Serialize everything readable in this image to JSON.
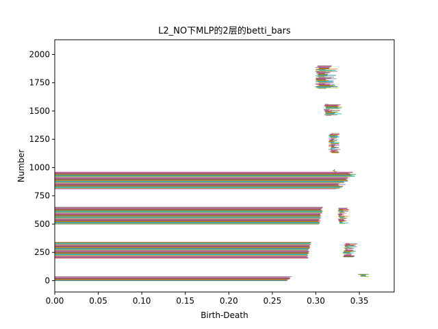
{
  "chart_data": {
    "type": "bar",
    "orientation": "horizontal",
    "title": "L2_NO下MLP的2层的betti_bars",
    "xlabel": "Birth-Death",
    "ylabel": "Number",
    "xlim": [
      0.0,
      0.39
    ],
    "ylim": [
      -100,
      2130
    ],
    "xticks": [
      0.0,
      0.05,
      0.1,
      0.15,
      0.2,
      0.25,
      0.3,
      0.35
    ],
    "xtick_labels": [
      "0.00",
      "0.05",
      "0.10",
      "0.15",
      "0.20",
      "0.25",
      "0.30",
      "0.35"
    ],
    "yticks": [
      0,
      250,
      500,
      750,
      1000,
      1250,
      1500,
      1750,
      2000
    ],
    "ytick_labels": [
      "0",
      "250",
      "500",
      "750",
      "1000",
      "1250",
      "1500",
      "1750",
      "2000"
    ],
    "grid": false,
    "legend": "none",
    "palette": [
      "#1f77b4",
      "#ff7f0e",
      "#2ca02c",
      "#d62728",
      "#9467bd",
      "#8c564b",
      "#e377c2",
      "#7f7f7f",
      "#bcbd22",
      "#17becf"
    ],
    "groups": [
      {
        "index_range": [
          0,
          35
        ],
        "kind": "long",
        "start": 0.0,
        "end_max": 0.273,
        "end_min": 0.265
      },
      {
        "index_range": [
          36,
          58
        ],
        "kind": "short",
        "start_min": 0.347,
        "start_max": 0.353,
        "end_min": 0.356,
        "end_max": 0.362
      },
      {
        "index_range": [
          200,
          340
        ],
        "kind": "long",
        "start": 0.0,
        "end_max": 0.295,
        "end_min": 0.289
      },
      {
        "index_range": [
          210,
          330
        ],
        "kind": "short",
        "start_min": 0.331,
        "start_max": 0.335,
        "end_min": 0.336,
        "end_max": 0.348
      },
      {
        "index_range": [
          500,
          650
        ],
        "kind": "long",
        "start": 0.0,
        "end_max": 0.309,
        "end_min": 0.302
      },
      {
        "index_range": [
          505,
          640
        ],
        "kind": "short",
        "start_min": 0.325,
        "start_max": 0.328,
        "end_min": 0.329,
        "end_max": 0.338
      },
      {
        "index_range": [
          810,
          960
        ],
        "kind": "long",
        "start": 0.0,
        "end_max": 0.35,
        "end_min": 0.32
      },
      {
        "index_range": [
          965,
          980
        ],
        "kind": "short",
        "start_min": 0.319,
        "start_max": 0.321,
        "end_min": 0.321,
        "end_max": 0.324
      },
      {
        "index_range": [
          1130,
          1300
        ],
        "kind": "short",
        "start_min": 0.314,
        "start_max": 0.318,
        "end_min": 0.319,
        "end_max": 0.329
      },
      {
        "index_range": [
          1460,
          1560
        ],
        "kind": "short",
        "start_min": 0.309,
        "start_max": 0.312,
        "end_min": 0.314,
        "end_max": 0.33
      },
      {
        "index_range": [
          1700,
          1900
        ],
        "kind": "short",
        "start_min": 0.299,
        "start_max": 0.304,
        "end_min": 0.31,
        "end_max": 0.326
      }
    ]
  }
}
